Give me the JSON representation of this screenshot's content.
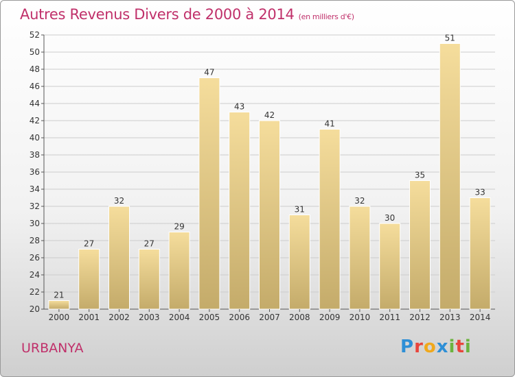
{
  "header": {
    "title": "Autres Revenus Divers de 2000 à 2014",
    "unit": "(en milliers d'€)"
  },
  "footer": {
    "place": "URBANYA",
    "logo": "Proxiti"
  },
  "colors": {
    "title": "#c0306a",
    "bar_light": "#f5dd9c",
    "bar_dark": "#c4ab6a",
    "grid": "#cccccc"
  },
  "chart_data": {
    "type": "bar",
    "categories": [
      "2000",
      "2001",
      "2002",
      "2003",
      "2004",
      "2005",
      "2006",
      "2007",
      "2008",
      "2009",
      "2010",
      "2011",
      "2012",
      "2013",
      "2014"
    ],
    "values": [
      21,
      27,
      32,
      27,
      29,
      47,
      43,
      42,
      31,
      41,
      32,
      30,
      35,
      51,
      33
    ],
    "title": "Autres Revenus Divers de 2000 à 2014",
    "xlabel": "",
    "ylabel": "",
    "ylim": [
      20,
      52
    ],
    "yticks": [
      20,
      22,
      24,
      26,
      28,
      30,
      32,
      34,
      36,
      38,
      40,
      42,
      44,
      46,
      48,
      50,
      52
    ],
    "grid": true,
    "legend": "none"
  }
}
